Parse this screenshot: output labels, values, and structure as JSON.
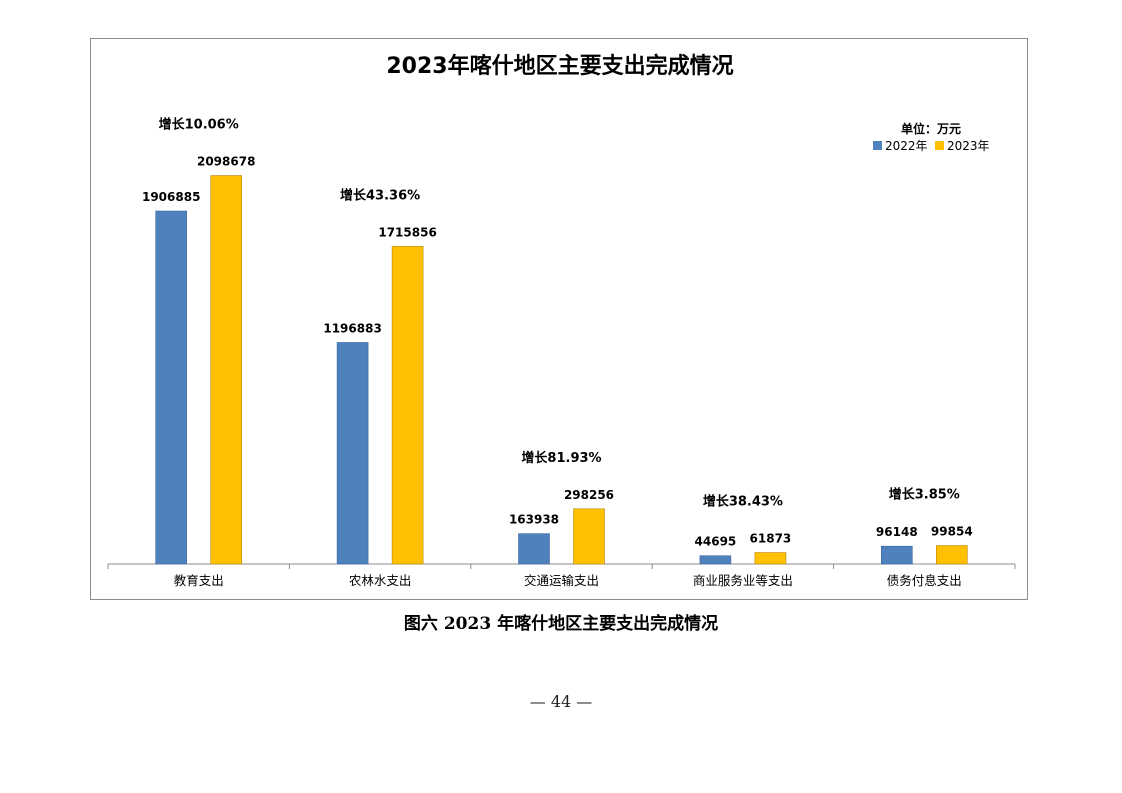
{
  "chart_data": {
    "type": "bar",
    "title": "2023年喀什地区主要支出完成情况",
    "unit_label": "单位：万元",
    "categories": [
      "教育支出",
      "农林水支出",
      "交通运输支出",
      "商业服务业等支出",
      "债务付息支出"
    ],
    "series": [
      {
        "name": "2022年",
        "color": "#4f81bd",
        "values": [
          1906885,
          1196883,
          163938,
          44695,
          96148
        ]
      },
      {
        "name": "2023年",
        "color": "#ffc000",
        "values": [
          2098678,
          1715856,
          298256,
          61873,
          99854
        ]
      }
    ],
    "growth_labels": [
      "增长10.06%",
      "增长43.36%",
      "增长81.93%",
      "增长38.43%",
      "增长3.85%"
    ],
    "ylim": [
      0,
      2550000
    ],
    "legend_position": "top-right",
    "grid": false
  },
  "caption": "图六  2023 年喀什地区主要支出完成情况",
  "page_number": "— 44 —"
}
